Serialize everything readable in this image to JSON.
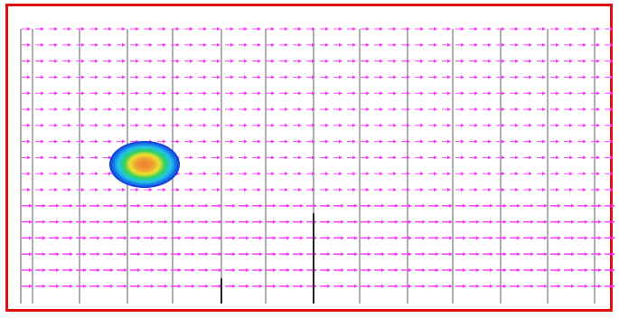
{
  "colors": {
    "frame_border": "#e01010",
    "vector_arrows": "#ff33ff",
    "grid_lines": "#9a9a9a",
    "probe_lines": "#222222",
    "blob_outer": "#1030d8",
    "blob_mid": "#22c3f0",
    "blob_inner": "#30d060",
    "blob_warm": "#f0e030",
    "blob_core": "#f07a30"
  },
  "icons": {
    "flow_arrow": "arrow-right-icon",
    "heat_blob": "heat-blob-icon"
  }
}
